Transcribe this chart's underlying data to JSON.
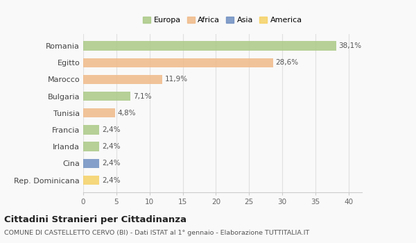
{
  "countries": [
    "Romania",
    "Egitto",
    "Marocco",
    "Bulgaria",
    "Tunisia",
    "Francia",
    "Irlanda",
    "Cina",
    "Rep. Dominicana"
  ],
  "values": [
    38.1,
    28.6,
    11.9,
    7.1,
    4.8,
    2.4,
    2.4,
    2.4,
    2.4
  ],
  "labels": [
    "38,1%",
    "28,6%",
    "11,9%",
    "7,1%",
    "4,8%",
    "2,4%",
    "2,4%",
    "2,4%",
    "2,4%"
  ],
  "bar_colors": [
    "#a8c882",
    "#f0b884",
    "#f0b884",
    "#a8c882",
    "#f0b884",
    "#a8c882",
    "#a8c882",
    "#6b8cbf",
    "#f5d060"
  ],
  "legend_labels": [
    "Europa",
    "Africa",
    "Asia",
    "America"
  ],
  "legend_colors": [
    "#a8c882",
    "#f0b884",
    "#6b8cbf",
    "#f5d060"
  ],
  "xlim": [
    0,
    42
  ],
  "xticks": [
    0,
    5,
    10,
    15,
    20,
    25,
    30,
    35,
    40
  ],
  "title": "Cittadini Stranieri per Cittadinanza",
  "subtitle": "COMUNE DI CASTELLETTO CERVO (BI) - Dati ISTAT al 1° gennaio - Elaborazione TUTTITALIA.IT",
  "background_color": "#f9f9f9",
  "grid_color": "#e0e0e0"
}
